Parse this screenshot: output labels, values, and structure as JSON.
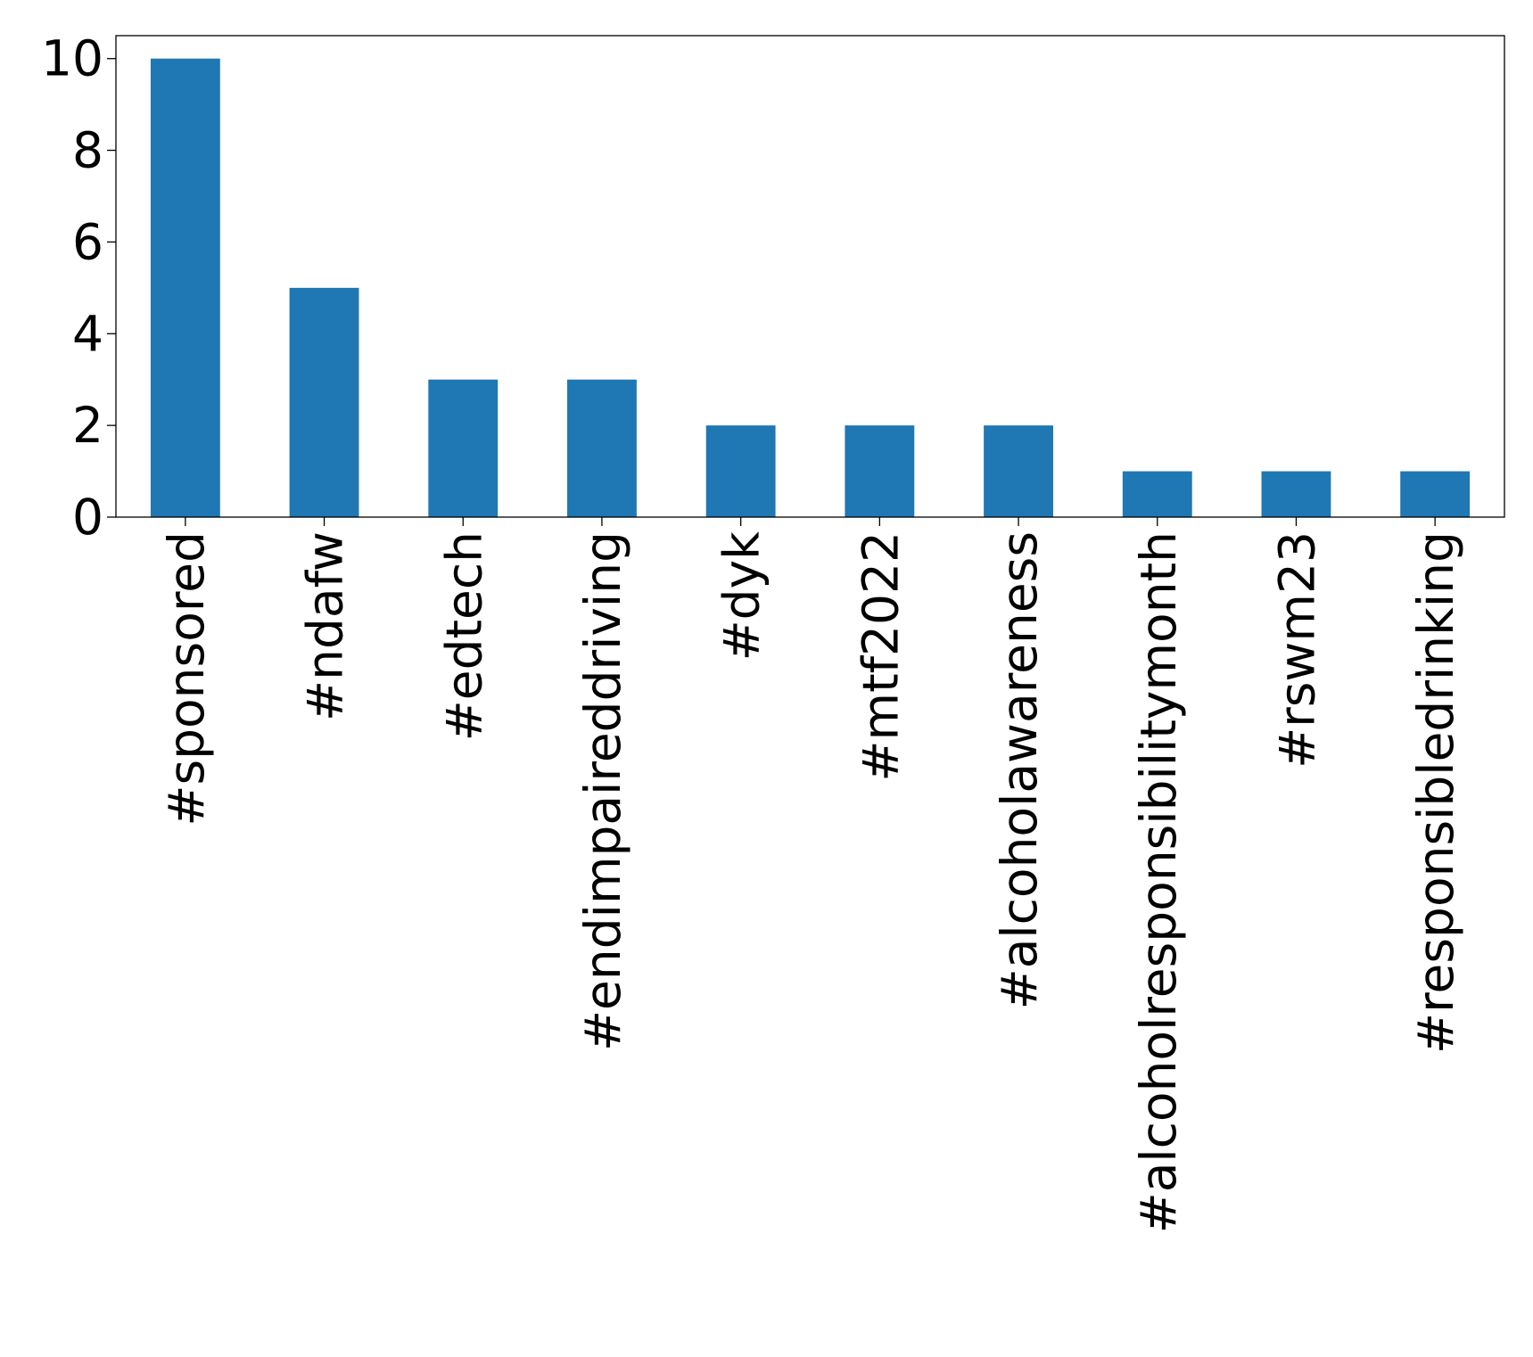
{
  "chart_data": {
    "type": "bar",
    "title": "",
    "xlabel": "",
    "ylabel": "",
    "categories": [
      "#sponsored",
      "#ndafw",
      "#edtech",
      "#endimpaireddriving",
      "#dyk",
      "#mtf2022",
      "#alcoholawareness",
      "#alcoholresponsibilitymonth",
      "#rswm23",
      "#responsibledrinking"
    ],
    "values": [
      10,
      5,
      3,
      3,
      2,
      2,
      2,
      1,
      1,
      1
    ],
    "ylim": [
      0,
      10.5
    ],
    "yticks": [
      0,
      2,
      4,
      6,
      8,
      10
    ],
    "grid": false,
    "legend": "none",
    "bar_color": "#1f77b4"
  }
}
